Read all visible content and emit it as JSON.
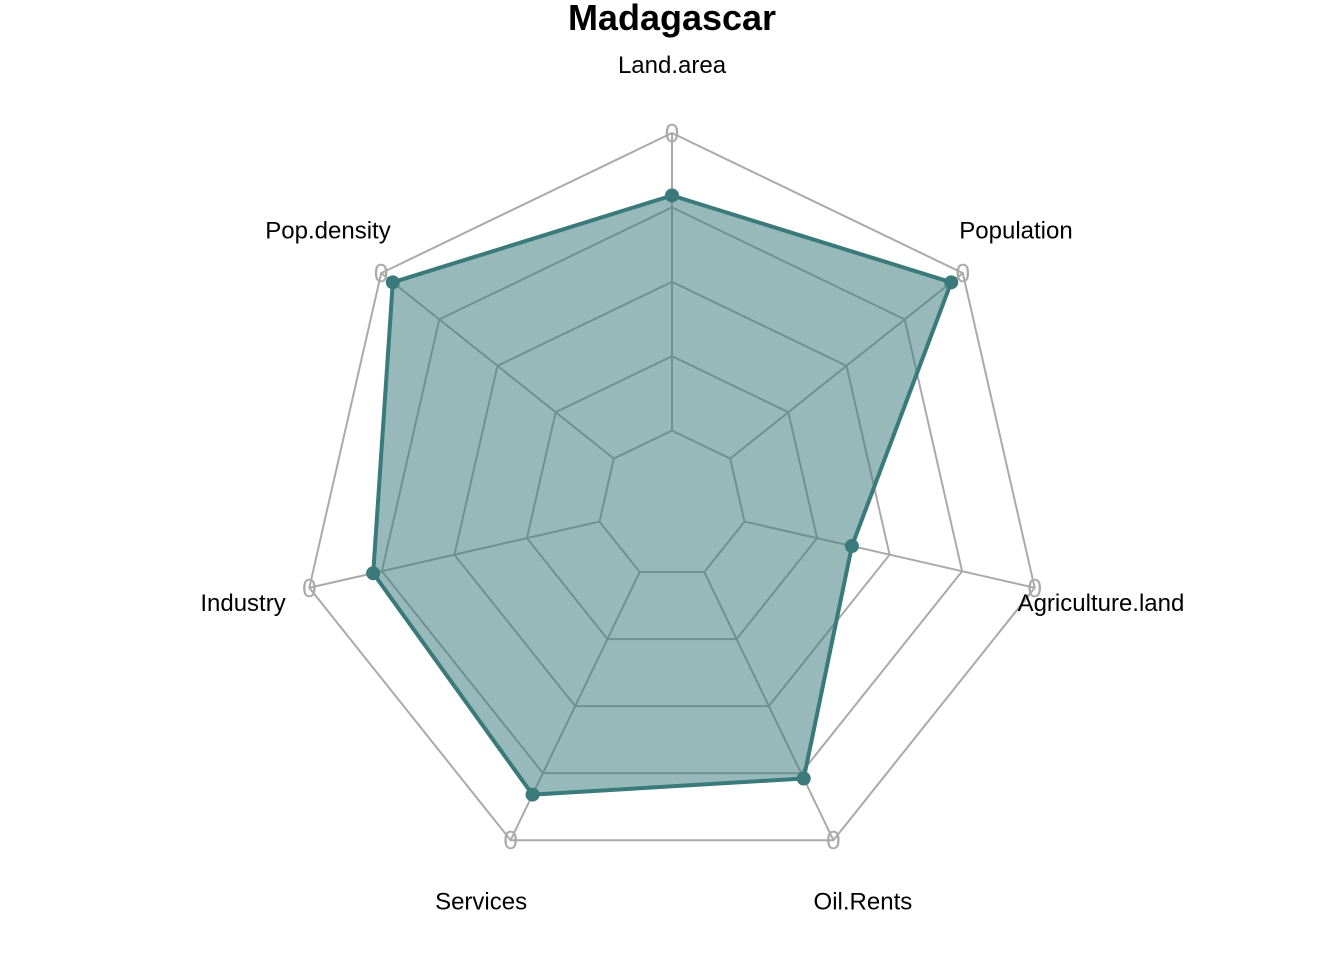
{
  "chart_data": {
    "type": "radar",
    "title": "Madagascar",
    "axes": [
      "Land.area",
      "Population",
      "Agriculture.land",
      "Oil.Rents",
      "Services",
      "Industry",
      "Pop.density"
    ],
    "series": [
      {
        "values": [
          0.79,
          0.95,
          0.37,
          0.77,
          0.83,
          0.78,
          0.95
        ]
      }
    ],
    "range": [
      0,
      1
    ],
    "rings": 5,
    "ring_min_fraction": 0.2,
    "ring_value_label": "0",
    "colors": {
      "series": "#3a7a7a",
      "fill": "#3a7a7a",
      "grid": "#aaaaaa"
    }
  }
}
